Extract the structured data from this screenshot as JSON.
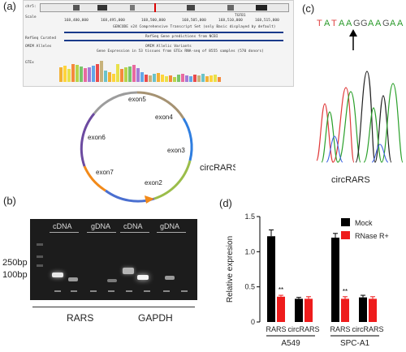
{
  "panel_a": {
    "label": "(a)",
    "browser": {
      "scale_label": "Scale",
      "chr_label": "chr5:",
      "coords": [
        "168,480,000",
        "168,495,000",
        "168,500,000",
        "168,505,000",
        "168,510,000",
        "168,515,000"
      ],
      "gencode_label": "GENCODE v24 Comprehensive Transcript Set (only Basic displayed by default)",
      "refseq_label": "RefSeq Curated",
      "refseq_pred": "RefSeq Gene predictions from NCBI",
      "omim_label": "OMIM Alleles",
      "omim_variants": "OMIM Allelic Variants",
      "gtex_label": "GTEx",
      "gtex_title": "Gene Expression in 53 tissues from GTEx RNA-seq of 8555 samples (570 donors)",
      "gene_label": "TGFB1"
    },
    "circle": {
      "exons": [
        "exon5",
        "exon4",
        "exon3",
        "exon2",
        "exon7",
        "exon6"
      ],
      "name": "circRARS"
    }
  },
  "panel_b": {
    "label": "(b)",
    "lanes": [
      "cDNA",
      "gDNA",
      "cDNA",
      "gDNA"
    ],
    "markers": [
      "250bp",
      "100bp"
    ],
    "genes": [
      "RARS",
      "GAPDH"
    ]
  },
  "panel_c": {
    "label": "(c)",
    "sequence": [
      "T",
      "A",
      "T",
      "A",
      "A",
      "G",
      "G",
      "A",
      "A",
      "G",
      "A",
      "A"
    ],
    "seq_colors": [
      "#e04040",
      "#2a9a2a",
      "#e04040",
      "#2a9a2a",
      "#2a9a2a",
      "#555555",
      "#555555",
      "#2a9a2a",
      "#2a9a2a",
      "#555555",
      "#2a9a2a",
      "#2a9a2a"
    ],
    "name": "circRARS"
  },
  "panel_d": {
    "label": "(d)",
    "chart_data": {
      "type": "bar",
      "ylabel": "Relative expresion",
      "ylim": [
        0,
        1.5
      ],
      "yticks": [
        "0",
        "0.5",
        "1.0",
        "1.5"
      ],
      "categories": [
        "RARS",
        "circRARS",
        "RARS",
        "circRARS"
      ],
      "groups": [
        "A549",
        "SPC-A1"
      ],
      "series": [
        {
          "name": "Mock",
          "color": "#000000",
          "values": [
            1.22,
            0.33,
            1.2,
            0.35
          ],
          "errors": [
            0.09,
            0.02,
            0.06,
            0.03
          ]
        },
        {
          "name": "RNase R+",
          "color": "#ee1c1c",
          "values": [
            0.36,
            0.33,
            0.33,
            0.33
          ],
          "errors": [
            0.02,
            0.03,
            0.03,
            0.03
          ]
        }
      ],
      "significance": [
        "**",
        "",
        "**",
        ""
      ],
      "legend_position": "top-right"
    }
  }
}
